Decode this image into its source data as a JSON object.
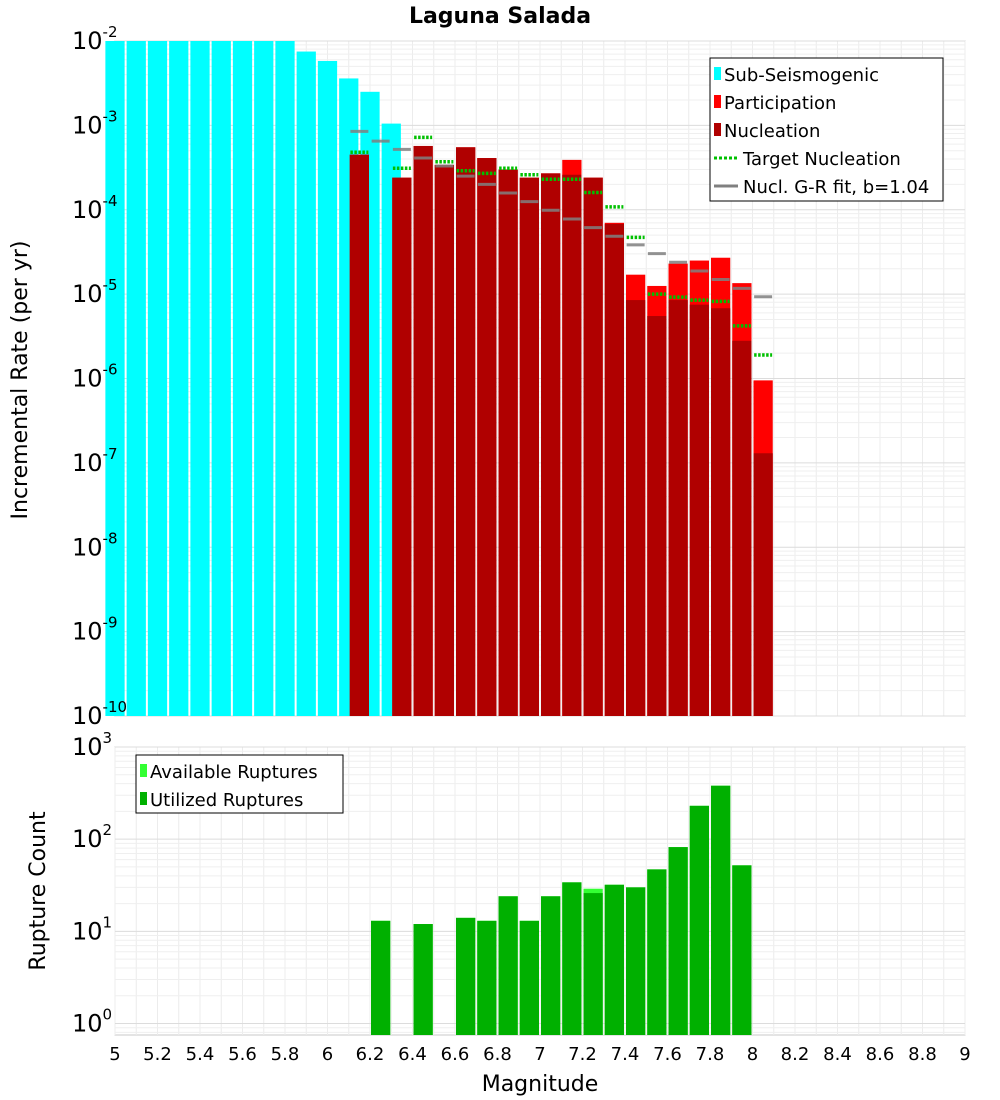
{
  "chart_data": [
    {
      "type": "bar",
      "title": "Laguna Salada",
      "xlabel": "",
      "ylabel": "Incremental Rate (per yr)",
      "yscale": "log",
      "xlim": [
        5,
        9
      ],
      "ylim": [
        1e-10,
        0.01
      ],
      "y_tick_exponents": [
        -2,
        -3,
        -4,
        -5,
        -6,
        -7,
        -8,
        -9,
        -10
      ],
      "grid": true,
      "legend_position": "top-right",
      "legend": [
        {
          "label": "Sub-Seismogenic",
          "kind": "bar",
          "color": "#00ffff"
        },
        {
          "label": "Participation",
          "kind": "bar",
          "color": "#ff0000"
        },
        {
          "label": "Nucleation",
          "kind": "bar",
          "color": "#b00000"
        },
        {
          "label": "Target Nucleation",
          "kind": "dotted",
          "color": "#00c000"
        },
        {
          "label": "Nucl. G-R fit, b=1.04",
          "kind": "line",
          "color": "#808080"
        }
      ],
      "series": [
        {
          "name": "Sub-Seismogenic",
          "color": "#00ffff",
          "x": [
            5.0,
            5.1,
            5.2,
            5.3,
            5.4,
            5.5,
            5.6,
            5.7,
            5.8,
            5.9,
            6.0,
            6.1,
            6.2,
            6.3
          ],
          "values": [
            0.01,
            0.01,
            0.01,
            0.01,
            0.01,
            0.01,
            0.01,
            0.01,
            0.01,
            0.0075,
            0.0058,
            0.0036,
            0.0025,
            0.00105
          ]
        },
        {
          "name": "Participation",
          "color": "#ff0000",
          "x": [
            6.15,
            6.35,
            6.45,
            6.55,
            6.65,
            6.75,
            6.85,
            6.95,
            7.05,
            7.15,
            7.25,
            7.35,
            7.45,
            7.55,
            7.65,
            7.75,
            7.85,
            7.95,
            8.05
          ],
          "values": [
            0.00045,
            0.00024,
            0.00057,
            0.00034,
            0.00055,
            0.00041,
            0.0003,
            0.00024,
            0.00027,
            0.00039,
            0.00024,
            7e-05,
            1.7e-05,
            1.25e-05,
            2.3e-05,
            2.5e-05,
            2.7e-05,
            1.35e-05,
            9.5e-07
          ]
        },
        {
          "name": "Nucleation",
          "color": "#b00000",
          "x": [
            6.15,
            6.35,
            6.45,
            6.55,
            6.65,
            6.75,
            6.85,
            6.95,
            7.05,
            7.15,
            7.25,
            7.35,
            7.45,
            7.55,
            7.65,
            7.75,
            7.85,
            7.95,
            8.05
          ],
          "values": [
            0.00045,
            0.00024,
            0.00057,
            0.00034,
            0.00055,
            0.00041,
            0.0003,
            0.00024,
            0.00027,
            0.00026,
            0.00024,
            6.8e-05,
            8.5e-06,
            5.5e-06,
            8.5e-06,
            7.5e-06,
            6.8e-06,
            2.8e-06,
            1.3e-07
          ]
        },
        {
          "name": "Target Nucleation",
          "color": "#00c000",
          "x": [
            6.15,
            6.35,
            6.45,
            6.55,
            6.65,
            6.75,
            6.85,
            6.95,
            7.05,
            7.15,
            7.25,
            7.35,
            7.45,
            7.55,
            7.65,
            7.75,
            7.85,
            7.95,
            8.05
          ],
          "values": [
            0.00048,
            0.00031,
            0.00072,
            0.00037,
            0.00029,
            0.00027,
            0.00031,
            0.00026,
            0.00023,
            0.00023,
            0.00016,
            0.000108,
            4.7e-05,
            1e-05,
            9.2e-06,
            8.5e-06,
            8.2e-06,
            4.2e-06,
            1.9e-06
          ]
        },
        {
          "name": "Nucl. G-R fit, b=1.04",
          "color": "#808080",
          "x": [
            6.15,
            6.25,
            6.35,
            6.45,
            6.55,
            6.65,
            6.75,
            6.85,
            6.95,
            7.05,
            7.15,
            7.25,
            7.35,
            7.45,
            7.55,
            7.65,
            7.75,
            7.85,
            7.95,
            8.05
          ],
          "values": [
            0.00085,
            0.00065,
            0.00052,
            0.00041,
            0.00033,
            0.00025,
            0.0002,
            0.000158,
            0.000125,
            9.85e-05,
            7.78e-05,
            6.14e-05,
            4.85e-05,
            3.83e-05,
            3.02e-05,
            2.39e-05,
            1.88e-05,
            1.49e-05,
            1.17e-05,
            9.3e-06
          ]
        }
      ]
    },
    {
      "type": "bar",
      "title": "",
      "xlabel": "Magnitude",
      "ylabel": "Rupture Count",
      "yscale": "log",
      "xlim": [
        5,
        9
      ],
      "ylim": [
        0.75,
        1000
      ],
      "x_ticks": [
        5,
        5.2,
        5.4,
        5.6,
        5.8,
        6,
        6.2,
        6.4,
        6.6,
        6.8,
        7,
        7.2,
        7.4,
        7.6,
        7.8,
        8,
        8.2,
        8.4,
        8.6,
        8.8,
        9
      ],
      "x_tick_labels": [
        "5",
        "5.2",
        "5.4",
        "5.6",
        "5.8",
        "6",
        "6.2",
        "6.4",
        "6.6",
        "6.8",
        "7",
        "7.2",
        "7.4",
        "7.6",
        "7.8",
        "8",
        "8.2",
        "8.4",
        "8.6",
        "8.8",
        "9"
      ],
      "y_tick_exponents": [
        3,
        2,
        1,
        0
      ],
      "grid": true,
      "legend_position": "top-left",
      "legend": [
        {
          "label": "Available Ruptures",
          "kind": "bar",
          "color": "#33ff33"
        },
        {
          "label": "Utilized Ruptures",
          "kind": "bar",
          "color": "#00b000"
        }
      ],
      "series": [
        {
          "name": "Available Ruptures",
          "color": "#33ff33",
          "x": [
            6.25,
            6.45,
            6.65,
            6.75,
            6.85,
            6.95,
            7.05,
            7.15,
            7.25,
            7.35,
            7.45,
            7.55,
            7.65,
            7.75,
            7.85,
            7.95
          ],
          "values": [
            13,
            12,
            14,
            13,
            24,
            13,
            24,
            34,
            29,
            32,
            30,
            47,
            82,
            230,
            380,
            52
          ]
        },
        {
          "name": "Utilized Ruptures",
          "color": "#00b000",
          "x": [
            6.25,
            6.45,
            6.65,
            6.75,
            6.85,
            6.95,
            7.05,
            7.15,
            7.25,
            7.35,
            7.45,
            7.55,
            7.65,
            7.75,
            7.85,
            7.95
          ],
          "values": [
            13,
            12,
            14,
            13,
            24,
            13,
            24,
            34,
            26,
            32,
            30,
            47,
            82,
            230,
            380,
            52
          ]
        }
      ]
    }
  ]
}
